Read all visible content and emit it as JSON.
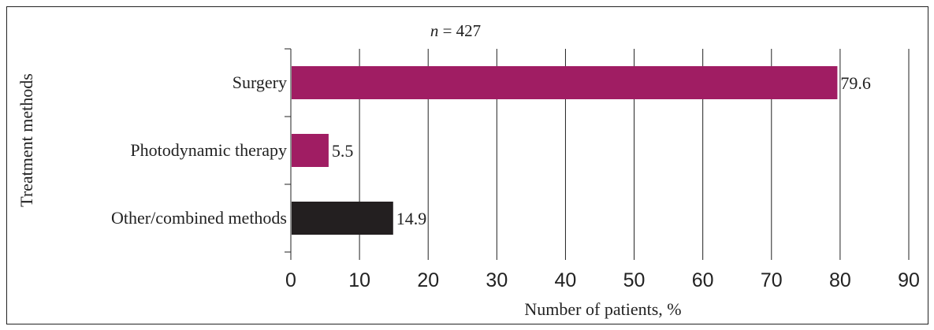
{
  "chart_data": {
    "type": "bar",
    "orientation": "horizontal",
    "title_prefix": "n",
    "title_suffix": " = 427",
    "categories": [
      "Surgery",
      "Photodynamic therapy",
      "Other/combined methods"
    ],
    "values": [
      79.6,
      5.5,
      14.9
    ],
    "value_labels": [
      "79.6",
      "5.5",
      "14.9"
    ],
    "bar_colors": [
      "#a01d63",
      "#a01d63",
      "#231f20"
    ],
    "xlabel": "Number of patients, %",
    "ylabel": "Treatment methods",
    "xlim": [
      0,
      90
    ],
    "x_ticks": [
      0,
      10,
      20,
      30,
      40,
      50,
      60,
      70,
      80,
      90
    ],
    "x_tick_labels": [
      "0",
      "10",
      "20",
      "30",
      "40",
      "50",
      "60",
      "70",
      "80",
      "90"
    ],
    "grid": "vertical"
  }
}
